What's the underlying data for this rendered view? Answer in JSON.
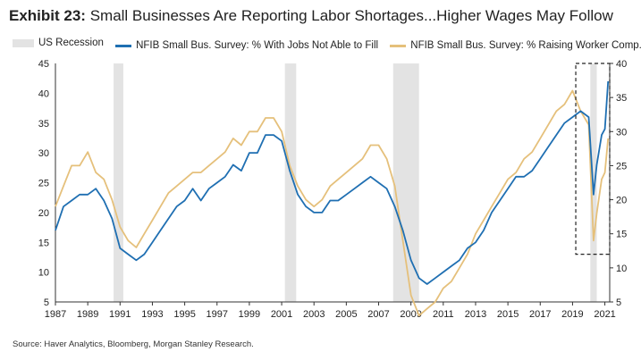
{
  "title": {
    "exhibit": "Exhibit 23:",
    "text": "Small Businesses Are Reporting Labor Shortages...Higher Wages May Follow"
  },
  "source": "Source: Haver Analytics, Bloomberg, Morgan Stanley Research.",
  "colors": {
    "blue": "#1f6fb2",
    "gold": "#e5c07b",
    "recession": "#e3e3e3"
  },
  "chart_data": {
    "type": "line",
    "legend_placement": "top",
    "grid": false,
    "x_ticks": [
      "1987",
      "1989",
      "1991",
      "1993",
      "1995",
      "1997",
      "1999",
      "2001",
      "2003",
      "2005",
      "2007",
      "2009",
      "2011",
      "2013",
      "2015",
      "2017",
      "2019",
      "2021"
    ],
    "xlim": [
      1987,
      2021.3
    ],
    "y_left": {
      "lim": [
        5,
        45
      ],
      "ticks": [
        "5",
        "10",
        "15",
        "20",
        "25",
        "30",
        "35",
        "40",
        "45"
      ]
    },
    "y_right": {
      "lim": [
        5,
        40
      ],
      "ticks": [
        "5",
        "10",
        "15",
        "20",
        "25",
        "30",
        "35",
        "40"
      ]
    },
    "recessions": [
      {
        "name": "US Recession",
        "start": 1990.6,
        "end": 1991.2
      },
      {
        "start": 2001.2,
        "end": 2001.9
      },
      {
        "start": 2007.9,
        "end": 2009.5
      },
      {
        "start": 2020.1,
        "end": 2020.5
      }
    ],
    "highlight_box": {
      "x": [
        2019.2,
        2021.3
      ],
      "y_right": [
        12,
        40
      ]
    },
    "series": [
      {
        "name": "NFIB Small Bus. Survey: % With Jobs Not Able to Fill",
        "axis": "left",
        "x": [
          1987.0,
          1987.5,
          1988.0,
          1988.5,
          1989.0,
          1989.5,
          1990.0,
          1990.5,
          1991.0,
          1991.5,
          1992.0,
          1992.5,
          1993.0,
          1993.5,
          1994.0,
          1994.5,
          1995.0,
          1995.5,
          1996.0,
          1996.5,
          1997.0,
          1997.5,
          1998.0,
          1998.5,
          1999.0,
          1999.5,
          2000.0,
          2000.5,
          2001.0,
          2001.5,
          2002.0,
          2002.5,
          2003.0,
          2003.5,
          2004.0,
          2004.5,
          2005.0,
          2005.5,
          2006.0,
          2006.5,
          2007.0,
          2007.5,
          2008.0,
          2008.5,
          2009.0,
          2009.5,
          2010.0,
          2010.5,
          2011.0,
          2011.5,
          2012.0,
          2012.5,
          2013.0,
          2013.5,
          2014.0,
          2014.5,
          2015.0,
          2015.5,
          2016.0,
          2016.5,
          2017.0,
          2017.5,
          2018.0,
          2018.5,
          2019.0,
          2019.5,
          2020.0,
          2020.3,
          2020.5,
          2020.8,
          2021.0,
          2021.2
        ],
        "values": [
          17,
          21,
          22,
          23,
          23,
          24,
          22,
          19,
          14,
          13,
          12,
          13,
          15,
          17,
          19,
          21,
          22,
          24,
          22,
          24,
          25,
          26,
          28,
          27,
          30,
          30,
          33,
          33,
          32,
          27,
          23,
          21,
          20,
          20,
          22,
          22,
          23,
          24,
          25,
          26,
          25,
          24,
          21,
          17,
          12,
          9,
          8,
          9,
          10,
          11,
          12,
          14,
          15,
          17,
          20,
          22,
          24,
          26,
          26,
          27,
          29,
          31,
          33,
          35,
          36,
          37,
          36,
          23,
          28,
          33,
          34,
          42
        ]
      },
      {
        "name": "NFIB Small Bus. Survey: % Raising Worker Comp.",
        "axis": "right",
        "x": [
          1987.0,
          1987.5,
          1988.0,
          1988.5,
          1989.0,
          1989.5,
          1990.0,
          1990.5,
          1991.0,
          1991.5,
          1992.0,
          1992.5,
          1993.0,
          1993.5,
          1994.0,
          1994.5,
          1995.0,
          1995.5,
          1996.0,
          1996.5,
          1997.0,
          1997.5,
          1998.0,
          1998.5,
          1999.0,
          1999.5,
          2000.0,
          2000.5,
          2001.0,
          2001.5,
          2002.0,
          2002.5,
          2003.0,
          2003.5,
          2004.0,
          2004.5,
          2005.0,
          2005.5,
          2006.0,
          2006.5,
          2007.0,
          2007.5,
          2008.0,
          2008.5,
          2009.0,
          2009.5,
          2010.0,
          2010.5,
          2011.0,
          2011.5,
          2012.0,
          2012.5,
          2013.0,
          2013.5,
          2014.0,
          2014.5,
          2015.0,
          2015.5,
          2016.0,
          2016.5,
          2017.0,
          2017.5,
          2018.0,
          2018.5,
          2019.0,
          2019.5,
          2020.0,
          2020.3,
          2020.5,
          2020.8,
          2021.0,
          2021.2
        ],
        "values": [
          19,
          22,
          25,
          25,
          27,
          24,
          23,
          20,
          16,
          14,
          13,
          15,
          17,
          19,
          21,
          22,
          23,
          24,
          24,
          25,
          26,
          27,
          29,
          28,
          30,
          30,
          32,
          32,
          30,
          25,
          22,
          20,
          19,
          20,
          22,
          23,
          24,
          25,
          26,
          28,
          28,
          26,
          22,
          14,
          6,
          3,
          4,
          5,
          7,
          8,
          10,
          12,
          15,
          17,
          19,
          21,
          23,
          24,
          26,
          27,
          29,
          31,
          33,
          34,
          36,
          33,
          31,
          14,
          18,
          23,
          24,
          29
        ]
      }
    ]
  }
}
